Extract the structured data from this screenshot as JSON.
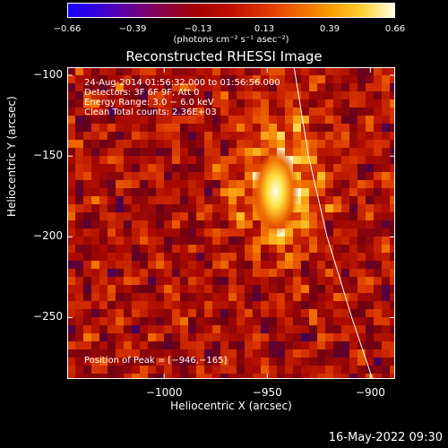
{
  "colorbar": {
    "ticks": [
      "−0.66",
      "−0.39",
      "−0.13",
      "0.13",
      "0.39",
      "0.66"
    ],
    "unit": "(photons cm⁻² s⁻¹ asec⁻²)"
  },
  "chart_data": {
    "type": "heatmap",
    "title": "Reconstructed RHESSI Image",
    "xlabel": "Heliocentric X (arcsec)",
    "ylabel": "Heliocentric Y (arcsec)",
    "xlim": [
      -1047,
      -888
    ],
    "ylim": [
      -288,
      -95
    ],
    "xticks": [
      -1000,
      -950,
      -900
    ],
    "xtick_labels": [
      "−1000",
      "−950",
      "−900"
    ],
    "yticks": [
      -100,
      -150,
      -200,
      -250
    ],
    "ytick_labels": [
      "−100",
      "−150",
      "−200",
      "−250"
    ],
    "colorbar_range": [
      -0.66,
      0.66
    ],
    "peak": [
      -946,
      -165
    ],
    "limb_curve": [
      [
        -937,
        -95
      ],
      [
        -930,
        -150
      ],
      [
        -921,
        -200
      ],
      [
        -909,
        -250
      ],
      [
        -899,
        -288
      ]
    ],
    "annotations": [
      "24-Aug-2014 01:56:32.000 to 01:56:56.000",
      "Detectors: 3F 6F 9F, Att 0",
      "Energy Range: 3.0 − 6.0 keV",
      "Clean    Total counts: 2.36E+03"
    ],
    "peak_label": "Position of Peak = [−946,−165]"
  },
  "timestamp": "16-May-2022 09:30",
  "colors": {
    "background": "#000000",
    "axes": "#ffffff"
  }
}
